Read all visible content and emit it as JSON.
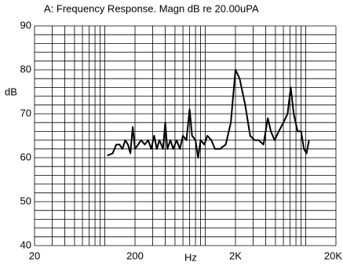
{
  "chart_data": {
    "type": "line",
    "title": "A: Frequency Response. Magn dB re 20.00uPA",
    "x_label": "Hz",
    "y_label": "dB",
    "log_x": true,
    "grid": true,
    "xlim": [
      20,
      20000
    ],
    "xticks": [
      20,
      200,
      {
        "value": 2000,
        "label": "2K"
      },
      {
        "value": 20000,
        "label": "20K"
      }
    ],
    "ylim": [
      40,
      90
    ],
    "yticks": [
      40,
      50,
      60,
      70,
      80,
      90
    ],
    "series": [
      {
        "name": "A",
        "color": "#000000",
        "x": [
          106,
          120,
          130,
          140,
          150,
          160,
          170,
          180,
          190,
          200,
          215,
          230,
          250,
          270,
          290,
          310,
          330,
          350,
          380,
          400,
          420,
          450,
          480,
          520,
          560,
          600,
          650,
          700,
          740,
          800,
          850,
          900,
          980,
          1050,
          1150,
          1250,
          1400,
          1600,
          1800,
          2000,
          2200,
          2500,
          2800,
          3100,
          3400,
          3800,
          4200,
          4500,
          4900,
          5400,
          6000,
          6600,
          7100,
          7600,
          8300,
          9000,
          9600,
          10200,
          10800
        ],
        "values": [
          60.5,
          61,
          63,
          63,
          62,
          64,
          63,
          61,
          67,
          62,
          63,
          64,
          63,
          64,
          62,
          65,
          62,
          64,
          62,
          68,
          62,
          64,
          62,
          64,
          62,
          65,
          64,
          71,
          65,
          64,
          60,
          64,
          63,
          65,
          64,
          62,
          62,
          63,
          68,
          80,
          78,
          72,
          65,
          64,
          64,
          63,
          69,
          66,
          64,
          66,
          68,
          70,
          76,
          70,
          66,
          66,
          62,
          61,
          64
        ]
      }
    ]
  }
}
